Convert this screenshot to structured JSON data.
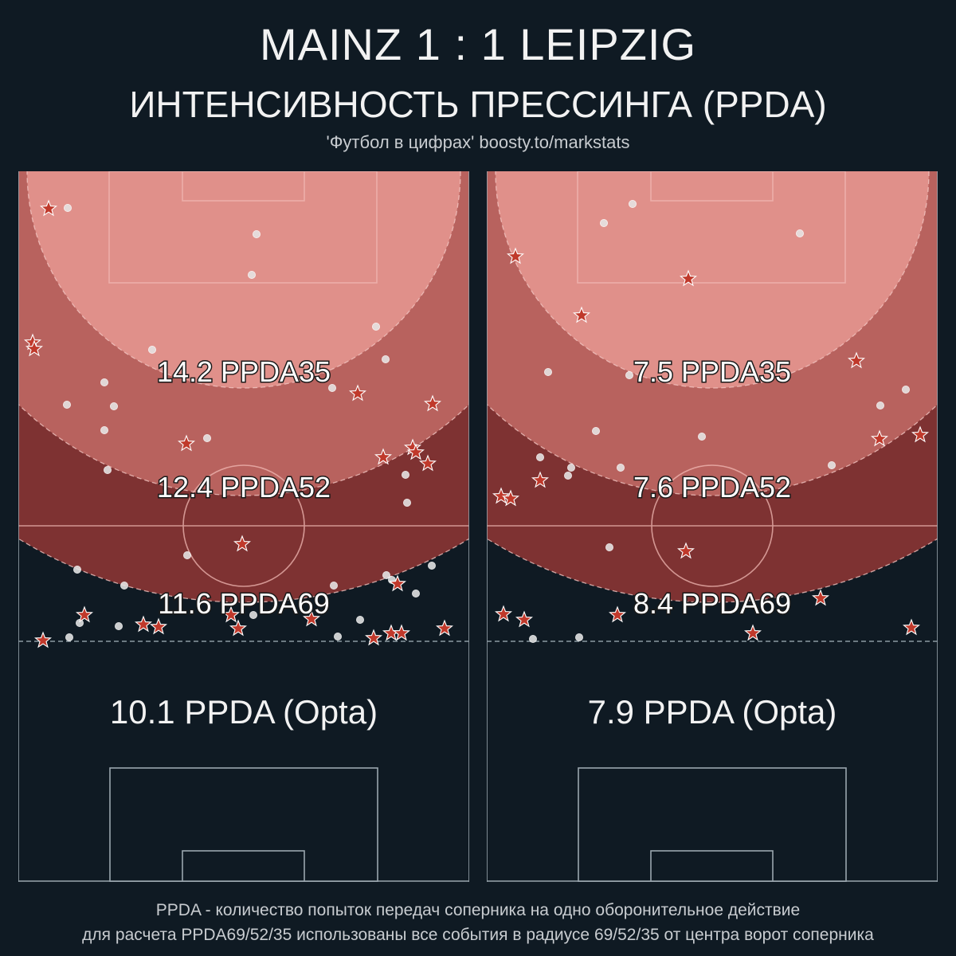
{
  "header": {
    "title": "MAINZ  1 : 1  LEIPZIG",
    "subtitle": "ИНТЕНСИВНОСТЬ ПРЕССИНГА (PPDA)",
    "credit": "'Футбол в цифрах' boosty.to/markstats"
  },
  "footer": {
    "line1": "PPDA - количество попыток передач соперника на одно оборонительное действие",
    "line2": "для расчета PPDA69/52/35 использованы все события в радиусе 69/52/35 от центра ворот соперника"
  },
  "colors": {
    "background": "#0f1a23",
    "zone35": "#e0908a",
    "zone52": "#b8625e",
    "zone69": "#7e3232",
    "marker_star": "#c0392b",
    "marker_dot": "#e6e6e6",
    "pitch_lines": "#9aa6ae"
  },
  "chart_data": {
    "type": "scatter",
    "marker_legend": {
      "star": "red-star-icon",
      "dot": "white-dot-icon"
    },
    "panels": [
      {
        "team_side": "left",
        "labels": {
          "ppda35": "14.2 PPDA35",
          "ppda52": "12.4 PPDA52",
          "ppda69": "11.6 PPDA69",
          "opta": "10.1 PPDA (Opta)"
        },
        "values": {
          "ppda35": 14.2,
          "ppda52": 12.4,
          "ppda69": 11.6,
          "opta": 10.1
        },
        "stars": [
          [
            38,
            47
          ],
          [
            18,
            215
          ],
          [
            20,
            223
          ],
          [
            426,
            279
          ],
          [
            211,
            342
          ],
          [
            458,
            359
          ],
          [
            495,
            347
          ],
          [
            499,
            353
          ],
          [
            514,
            367
          ],
          [
            520,
            292
          ],
          [
            281,
            468
          ],
          [
            83,
            557
          ],
          [
            176,
            572
          ],
          [
            157,
            569
          ],
          [
            267,
            557
          ],
          [
            276,
            574
          ],
          [
            368,
            562
          ],
          [
            31,
            589
          ],
          [
            446,
            586
          ],
          [
            468,
            580
          ],
          [
            481,
            580
          ],
          [
            535,
            574
          ],
          [
            476,
            518
          ]
        ],
        "dots": [
          [
            62,
            46
          ],
          [
            299,
            79
          ],
          [
            293,
            130
          ],
          [
            449,
            195
          ],
          [
            168,
            224
          ],
          [
            461,
            236
          ],
          [
            120,
            295
          ],
          [
            108,
            265
          ],
          [
            61,
            293
          ],
          [
            394,
            272
          ],
          [
            108,
            325
          ],
          [
            237,
            335
          ],
          [
            112,
            375
          ],
          [
            486,
            381
          ],
          [
            488,
            416
          ],
          [
            212,
            482
          ],
          [
            74,
            500
          ],
          [
            133,
            520
          ],
          [
            396,
            520
          ],
          [
            462,
            507
          ],
          [
            469,
            513
          ],
          [
            519,
            495
          ],
          [
            499,
            530
          ],
          [
            77,
            567
          ],
          [
            126,
            571
          ],
          [
            295,
            557
          ],
          [
            429,
            563
          ],
          [
            401,
            584
          ],
          [
            64,
            585
          ]
        ]
      },
      {
        "team_side": "right",
        "labels": {
          "ppda35": "7.5 PPDA35",
          "ppda52": "7.6 PPDA52",
          "ppda69": "8.4 PPDA69",
          "opta": "7.9 PPDA (Opta)"
        },
        "values": {
          "ppda35": 7.5,
          "ppda52": 7.6,
          "ppda69": 8.4,
          "opta": 7.9
        },
        "stars": [
          [
            36,
            107
          ],
          [
            253,
            135
          ],
          [
            119,
            181
          ],
          [
            464,
            238
          ],
          [
            493,
            336
          ],
          [
            544,
            331
          ],
          [
            67,
            388
          ],
          [
            18,
            408
          ],
          [
            30,
            411
          ],
          [
            250,
            477
          ],
          [
            21,
            556
          ],
          [
            47,
            563
          ],
          [
            164,
            557
          ],
          [
            419,
            536
          ],
          [
            334,
            580
          ],
          [
            533,
            573
          ]
        ],
        "dots": [
          [
            183,
            41
          ],
          [
            147,
            65
          ],
          [
            393,
            78
          ],
          [
            77,
            252
          ],
          [
            179,
            256
          ],
          [
            494,
            294
          ],
          [
            526,
            274
          ],
          [
            137,
            326
          ],
          [
            270,
            333
          ],
          [
            67,
            359
          ],
          [
            106,
            372
          ],
          [
            168,
            372
          ],
          [
            433,
            369
          ],
          [
            102,
            382
          ],
          [
            154,
            472
          ],
          [
            58,
            587
          ],
          [
            116,
            585
          ]
        ]
      }
    ]
  }
}
